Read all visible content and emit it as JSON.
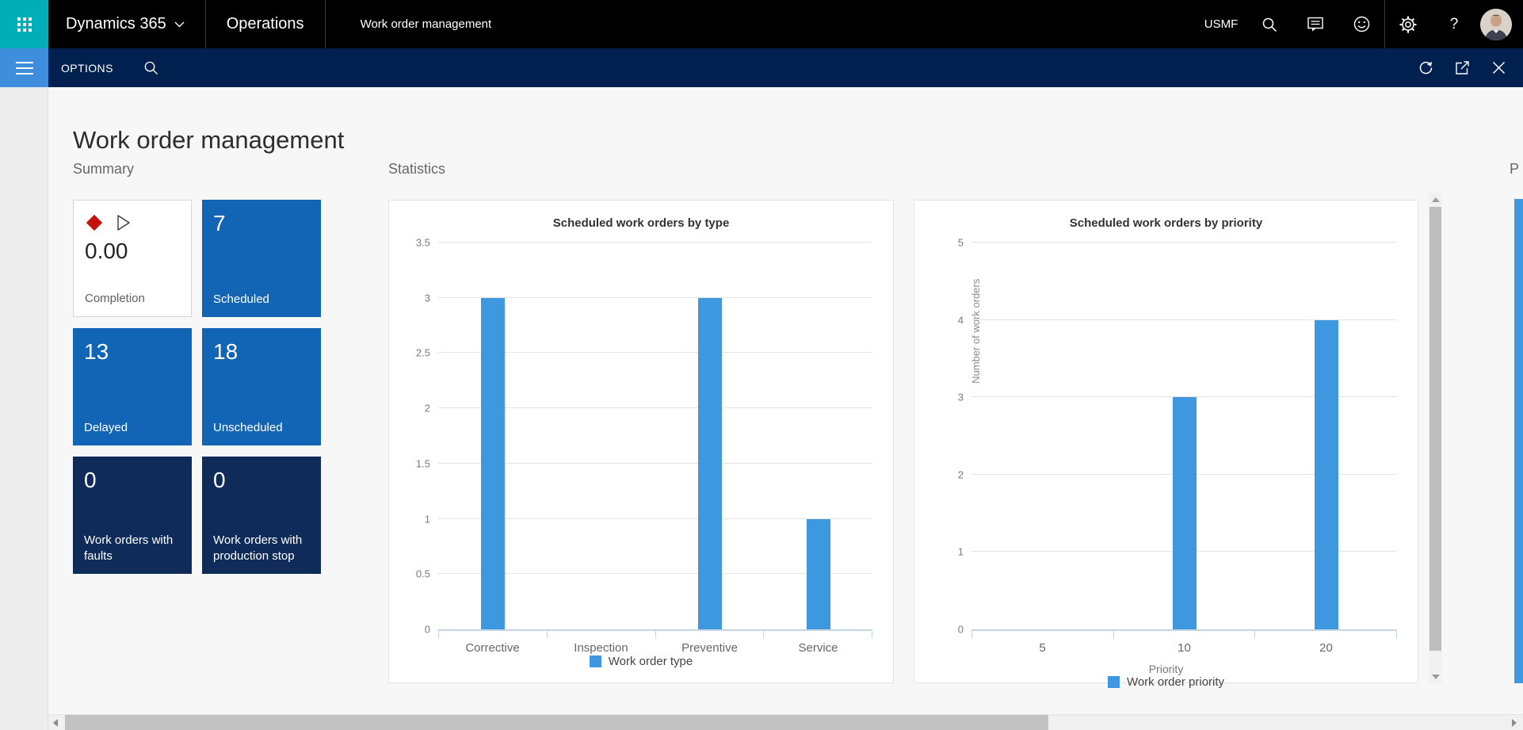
{
  "topbar": {
    "product_label": "Dynamics 365",
    "app_label": "Operations",
    "page_label": "Work order management",
    "company": "USMF",
    "help_label": "?"
  },
  "navbar": {
    "options_label": "OPTIONS"
  },
  "page": {
    "title": "Work order management",
    "summary_header": "Summary",
    "statistics_header": "Statistics",
    "clipped_header": "P"
  },
  "tiles": [
    {
      "value": "0.00",
      "label": "Completion",
      "style": "white"
    },
    {
      "value": "7",
      "label": "Scheduled",
      "style": "blue"
    },
    {
      "value": "13",
      "label": "Delayed",
      "style": "blue"
    },
    {
      "value": "18",
      "label": "Unscheduled",
      "style": "blue"
    },
    {
      "value": "0",
      "label": "Work orders with faults",
      "style": "dark"
    },
    {
      "value": "0",
      "label": "Work orders with production stop",
      "style": "dark"
    }
  ],
  "chart_data": [
    {
      "type": "bar",
      "title": "Scheduled work orders by type",
      "categories": [
        "Corrective",
        "Inspection",
        "Preventive",
        "Service"
      ],
      "values": [
        3,
        0,
        3,
        1
      ],
      "ylim": [
        0,
        3.5
      ],
      "ytick_step": 0.5,
      "xlabel": "",
      "ylabel": "",
      "legend": [
        {
          "name": "Work order type",
          "color": "#3E98E0"
        }
      ],
      "legend_position": "bottom",
      "grid": true,
      "bar_color": "#3E98E0"
    },
    {
      "type": "bar",
      "title": "Scheduled work orders by priority",
      "categories": [
        "5",
        "10",
        "20"
      ],
      "values": [
        0,
        3,
        4
      ],
      "ylim": [
        0,
        5
      ],
      "ytick_step": 1,
      "xlabel": "Priority",
      "ylabel": "Number of work orders",
      "legend": [
        {
          "name": "Work order priority",
          "color": "#3E98E0"
        }
      ],
      "legend_position": "bottom",
      "grid": true,
      "bar_color": "#3E98E0"
    }
  ],
  "icons": {
    "waffle-icon": "app-launcher 3x3 grid",
    "chevron-down-icon": "environment picker chevron",
    "search-icon": "magnifier",
    "feedback-icon": "speech bubble with lines",
    "smiley-icon": "send-a-smile face",
    "gear-icon": "settings gear",
    "help-icon": "question mark",
    "avatar": "user photo",
    "hamburger-icon": "expand navigation pane",
    "refresh-icon": "circular arrow",
    "popout-icon": "open in new window",
    "close-icon": "x cross",
    "diamond-icon": "red KPI diamond",
    "play-icon": "outlined play triangle"
  },
  "colors": {
    "topbar_bg": "#000000",
    "teal_accent": "#00AEB8",
    "navbar_bg": "#002050",
    "hamburger_bg": "#3F8EDD",
    "tile_blue": "#1165B4",
    "tile_dark": "#0E2B5A",
    "bar_blue": "#3E98E0",
    "kpi_red": "#C4120B",
    "page_bg": "#f7f7f7"
  }
}
